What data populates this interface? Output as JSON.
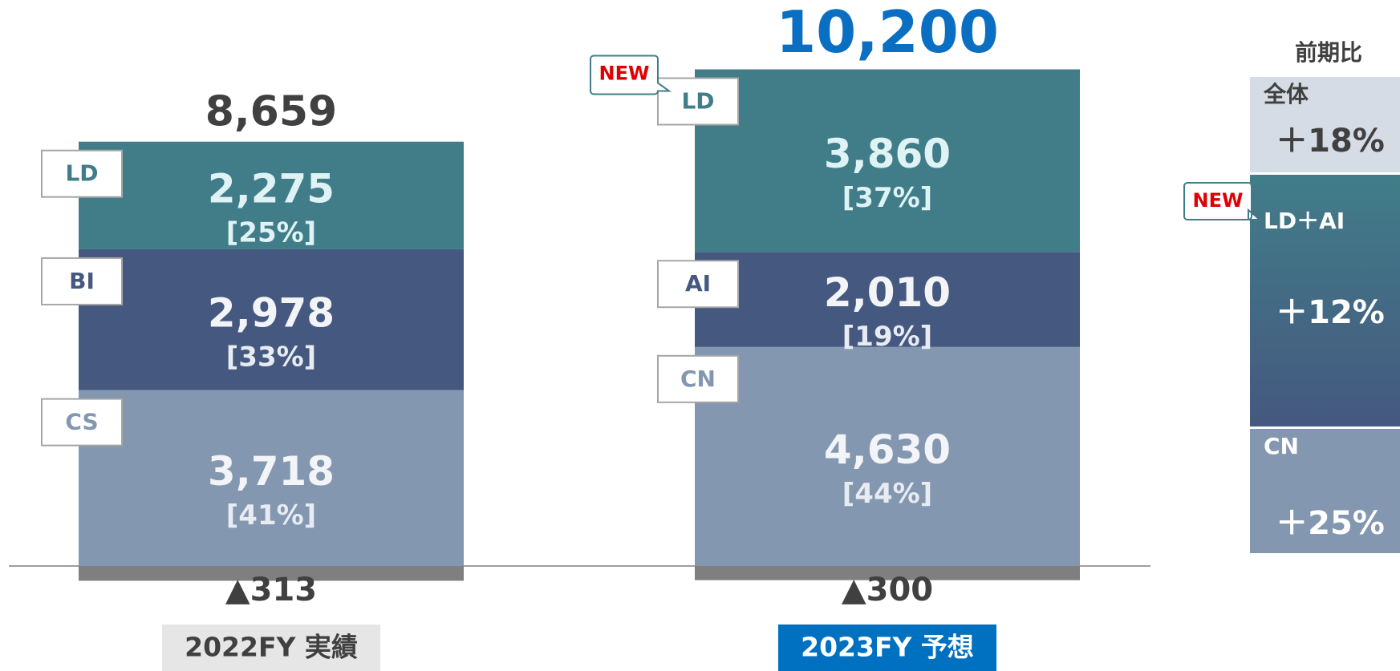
{
  "chart_data": {
    "type": "stacked_bar",
    "bars": [
      {
        "category": "2022FY 実績",
        "total": 8659,
        "total_label": "8,659",
        "total_color": "#404040",
        "adjustment": -313,
        "adjustment_label": "▲313",
        "category_color": "#e7e6e6",
        "category_text_color": "#404040",
        "segments": [
          {
            "name": "LD",
            "value": 2275,
            "value_label": "2,275",
            "share": 25,
            "share_label": "[25%]",
            "color": "#417d89"
          },
          {
            "name": "BI",
            "value": 2978,
            "value_label": "2,978",
            "share": 33,
            "share_label": "[33%]",
            "color": "#45587f"
          },
          {
            "name": "CS",
            "value": 3718,
            "value_label": "3,718",
            "share": 41,
            "share_label": "[41%]",
            "color": "#8397b0"
          }
        ]
      },
      {
        "category": "2023FY 予想",
        "total": 10200,
        "total_label": "10,200",
        "total_color": "#0a6fc2",
        "adjustment": -300,
        "adjustment_label": "▲300",
        "category_color": "#0070c0",
        "category_text_color": "#ffffff",
        "segments": [
          {
            "name": "LD",
            "badge": "NEW",
            "value": 3860,
            "value_label": "3,860",
            "share": 37,
            "share_label": "[37%]",
            "color": "#417d89"
          },
          {
            "name": "AI",
            "value": 2010,
            "value_label": "2,010",
            "share": 19,
            "share_label": "[19%]",
            "color": "#45587f"
          },
          {
            "name": "CN",
            "value": 4630,
            "value_label": "4,630",
            "share": 44,
            "share_label": "[44%]",
            "color": "#8397b0"
          }
        ]
      }
    ],
    "adjustment_color": "#7f7f7f"
  },
  "comparison": {
    "title": "前期比",
    "rows": [
      {
        "name": "全体",
        "change": "＋18%"
      },
      {
        "name": "LD＋AI",
        "badge": "NEW",
        "change": "＋12%"
      },
      {
        "name": "CN",
        "change": "＋25%"
      }
    ]
  }
}
